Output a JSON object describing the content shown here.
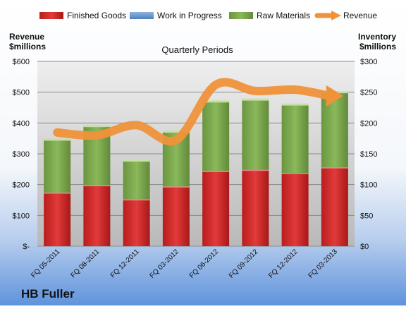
{
  "company": "HB Fuller",
  "chart_data": {
    "type": "bar",
    "title": "Quarterly Periods",
    "categories": [
      "FQ 05-2011",
      "FQ 08-2011",
      "FQ 12-2011",
      "FQ 03-2012",
      "FQ 06-2012",
      "FQ 09-2012",
      "FQ 12-2012",
      "FQ 03-2013"
    ],
    "stacked": true,
    "series": [
      {
        "name": "Finished Goods",
        "axis": "right",
        "color": "#cc2222",
        "values": [
          87,
          99,
          76,
          97,
          122,
          124,
          119,
          128
        ]
      },
      {
        "name": "Work in Progress",
        "axis": "right",
        "color": "#4f81bd",
        "values": [
          0,
          0,
          0,
          0,
          0,
          0,
          0,
          0
        ]
      },
      {
        "name": "Raw Materials",
        "axis": "right",
        "color": "#77a34a",
        "values": [
          86,
          96,
          63,
          89,
          113,
          114,
          111,
          122
        ]
      },
      {
        "name": "Revenue",
        "type": "line",
        "axis": "left",
        "color": "#f0923a",
        "values": [
          369,
          360,
          393,
          345,
          524,
          504,
          508,
          488
        ]
      }
    ],
    "left_axis": {
      "label_line1": "Revenue",
      "label_line2": "$millions",
      "range": [
        0,
        600
      ],
      "ticks": [
        0,
        100,
        200,
        300,
        400,
        500,
        600
      ],
      "tick_labels": [
        "$-",
        "$100",
        "$200",
        "$300",
        "$400",
        "$500",
        "$600"
      ]
    },
    "right_axis": {
      "label_line1": "Inventory",
      "label_line2": "$millions",
      "range": [
        0,
        300
      ],
      "ticks": [
        0,
        50,
        100,
        150,
        200,
        250,
        300
      ],
      "tick_labels": [
        "$0",
        "$50",
        "$100",
        "$150",
        "$200",
        "$250",
        "$300"
      ]
    },
    "grid": true,
    "legend_position": "top"
  }
}
